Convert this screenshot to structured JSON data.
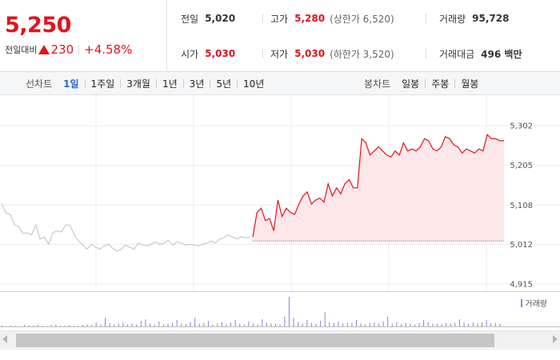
{
  "summary": {
    "current_price": "5,250",
    "change_label": "전일대비",
    "change_value": "230",
    "change_pct": "+4.58%",
    "prev_close_label": "전일",
    "prev_close": "5,020",
    "open_label": "시가",
    "open": "5,030",
    "high_label": "고가",
    "high": "5,280",
    "upper_limit": "(상한가 6,520)",
    "low_label": "저가",
    "low": "5,030",
    "lower_limit": "(하한가 3,520)",
    "volume_label": "거래량",
    "volume": "95,728",
    "value_label": "거래대금",
    "value": "496 백만"
  },
  "range_bar": {
    "line_label": "선차트",
    "line_ranges": [
      "1일",
      "1주일",
      "3개월",
      "1년",
      "3년",
      "5년",
      "10년"
    ],
    "active_range": "1일",
    "candle_label": "봉차트",
    "candle_ranges": [
      "일봉",
      "주봉",
      "월봉"
    ]
  },
  "colors": {
    "up": "#e0141e",
    "prev_line": "#c0c0c0",
    "area_fill": "#fde7e8",
    "volume": "#8c7fd6"
  },
  "chart_data": {
    "type": "line",
    "y_ticks": [
      "5,302",
      "5,205",
      "5,108",
      "5,012",
      "4,915"
    ],
    "ylim": [
      4915,
      5302
    ],
    "baseline": 5020,
    "series": [
      {
        "values": [
          5112,
          5088,
          5085,
          5060,
          5055,
          5038,
          5040,
          5035,
          5060,
          5025,
          5030,
          5012,
          5040,
          5045,
          5042,
          5060,
          5058,
          5035,
          5020,
          5010,
          5000,
          5012,
          5005,
          5000,
          5008,
          5012,
          5002,
          4995,
          5000,
          5010,
          5005,
          5000,
          5015,
          5010,
          5008,
          5012,
          5018,
          5012,
          5015,
          5022,
          5010,
          5018,
          5015,
          5010,
          5012,
          5010,
          5008,
          5012,
          5015,
          5020,
          5015,
          5025,
          5028,
          5035,
          5030,
          5025,
          5030,
          5028,
          5030
        ]
      },
      {
        "values": [
          5030,
          5090,
          5100,
          5070,
          5075,
          5045,
          5120,
          5080,
          5100,
          5090,
          5085,
          5110,
          5130,
          5140,
          5110,
          5120,
          5125,
          5115,
          5160,
          5130,
          5150,
          5135,
          5160,
          5170,
          5150,
          5150,
          5270,
          5260,
          5230,
          5240,
          5250,
          5240,
          5230,
          5225,
          5240,
          5230,
          5260,
          5240,
          5245,
          5240,
          5250,
          5270,
          5265,
          5245,
          5240,
          5250,
          5275,
          5270,
          5255,
          5250,
          5235,
          5245,
          5240,
          5235,
          5245,
          5240,
          5280,
          5270,
          5270,
          5265,
          5265
        ]
      }
    ],
    "volume_label": "거래량",
    "volume": [
      1,
      0,
      1,
      1,
      0,
      2,
      1,
      1,
      2,
      1,
      1,
      2,
      3,
      1,
      1,
      2,
      1,
      1,
      2,
      3,
      2,
      6,
      3,
      12,
      5,
      3,
      4,
      6,
      3,
      4,
      3,
      8,
      10,
      4,
      3,
      7,
      3,
      4,
      5,
      9,
      4,
      3,
      6,
      12,
      4,
      5,
      8,
      3,
      4,
      6,
      3,
      5,
      9,
      4,
      3,
      7,
      4,
      3,
      10,
      5,
      4,
      4,
      3,
      14,
      42,
      12,
      6,
      4,
      9,
      5,
      4,
      8,
      20,
      6,
      5,
      7,
      4,
      6,
      5,
      9,
      4,
      3,
      5,
      6,
      4,
      7,
      14,
      4,
      6,
      3,
      5,
      4,
      3,
      5,
      9,
      6,
      4,
      4,
      3,
      5,
      4,
      5,
      10,
      6,
      4,
      5,
      4,
      6,
      9,
      4,
      5,
      4
    ]
  }
}
